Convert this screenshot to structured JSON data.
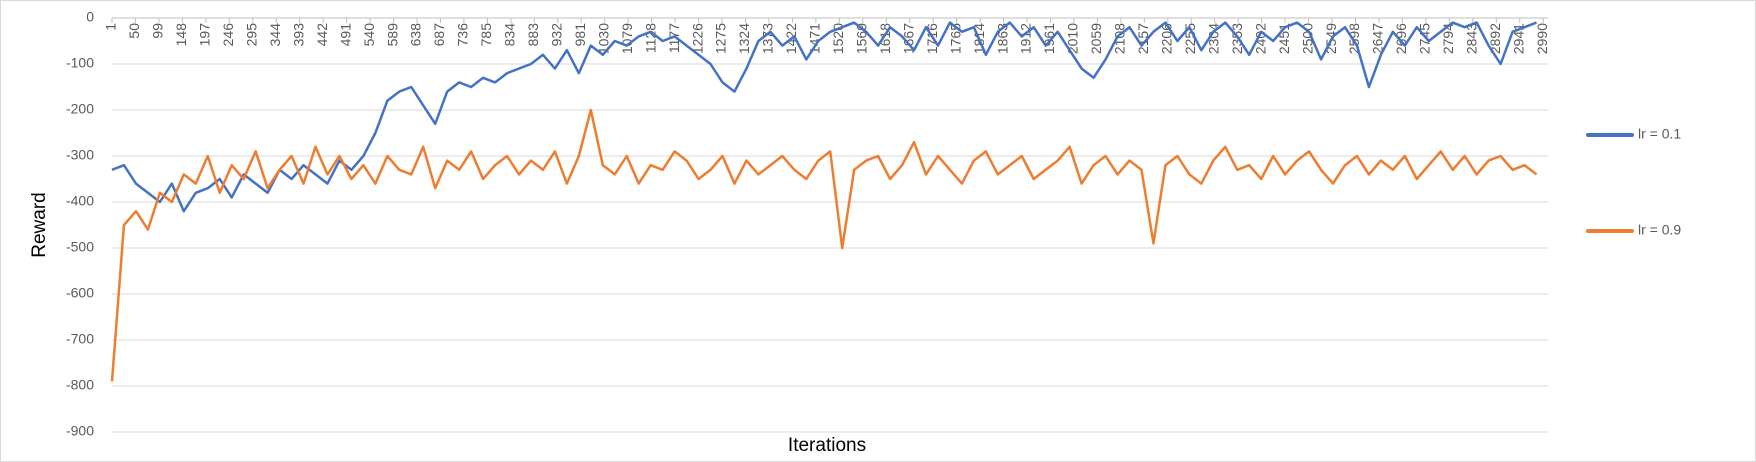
{
  "chart_data": {
    "type": "line",
    "x_label": "Iterations",
    "y_label": "Reward",
    "x": [
      1,
      26,
      51,
      76,
      101,
      126,
      151,
      176,
      201,
      226,
      251,
      276,
      301,
      326,
      351,
      376,
      401,
      426,
      451,
      476,
      501,
      526,
      551,
      576,
      601,
      626,
      651,
      676,
      701,
      726,
      751,
      776,
      801,
      826,
      851,
      876,
      901,
      926,
      951,
      976,
      1001,
      1026,
      1051,
      1076,
      1101,
      1126,
      1151,
      1176,
      1201,
      1226,
      1251,
      1276,
      1301,
      1326,
      1351,
      1376,
      1401,
      1426,
      1451,
      1476,
      1501,
      1526,
      1551,
      1576,
      1601,
      1626,
      1651,
      1676,
      1701,
      1726,
      1751,
      1776,
      1801,
      1826,
      1851,
      1876,
      1901,
      1926,
      1951,
      1976,
      2001,
      2026,
      2051,
      2076,
      2101,
      2126,
      2151,
      2176,
      2201,
      2226,
      2251,
      2276,
      2301,
      2326,
      2351,
      2376,
      2401,
      2426,
      2451,
      2476,
      2501,
      2526,
      2551,
      2576,
      2601,
      2626,
      2651,
      2676,
      2701,
      2726,
      2751,
      2776,
      2801,
      2826,
      2851,
      2876,
      2901,
      2926,
      2951,
      2976
    ],
    "series": [
      {
        "name": "lr = 0.1",
        "color": "#4472c4",
        "values": [
          -330,
          -320,
          -360,
          -380,
          -400,
          -360,
          -420,
          -380,
          -370,
          -350,
          -390,
          -340,
          -360,
          -380,
          -330,
          -350,
          -320,
          -340,
          -360,
          -310,
          -330,
          -300,
          -250,
          -180,
          -160,
          -150,
          -190,
          -230,
          -160,
          -140,
          -150,
          -130,
          -140,
          -120,
          -110,
          -100,
          -80,
          -110,
          -70,
          -120,
          -60,
          -80,
          -50,
          -60,
          -40,
          -30,
          -50,
          -40,
          -60,
          -80,
          -100,
          -140,
          -160,
          -110,
          -50,
          -30,
          -60,
          -40,
          -90,
          -50,
          -30,
          -20,
          -10,
          -30,
          -60,
          -20,
          -40,
          -70,
          -20,
          -60,
          -10,
          -30,
          -20,
          -80,
          -30,
          -10,
          -40,
          -20,
          -60,
          -30,
          -70,
          -110,
          -130,
          -90,
          -40,
          -20,
          -60,
          -30,
          -10,
          -50,
          -20,
          -70,
          -30,
          -10,
          -40,
          -80,
          -30,
          -50,
          -20,
          -10,
          -30,
          -90,
          -40,
          -20,
          -60,
          -150,
          -80,
          -30,
          -60,
          -20,
          -50,
          -30,
          -10,
          -20,
          -10,
          -60,
          -100,
          -30,
          -20,
          -10
        ]
      },
      {
        "name": "lr = 0.9",
        "color": "#ed7d31",
        "values": [
          -790,
          -450,
          -420,
          -460,
          -380,
          -400,
          -340,
          -360,
          -300,
          -380,
          -320,
          -350,
          -290,
          -370,
          -330,
          -300,
          -360,
          -280,
          -340,
          -300,
          -350,
          -320,
          -360,
          -300,
          -330,
          -340,
          -280,
          -370,
          -310,
          -330,
          -290,
          -350,
          -320,
          -300,
          -340,
          -310,
          -330,
          -290,
          -360,
          -300,
          -200,
          -320,
          -340,
          -300,
          -360,
          -320,
          -330,
          -290,
          -310,
          -350,
          -330,
          -300,
          -360,
          -310,
          -340,
          -320,
          -300,
          -330,
          -350,
          -310,
          -290,
          -500,
          -330,
          -310,
          -300,
          -350,
          -320,
          -270,
          -340,
          -300,
          -330,
          -360,
          -310,
          -290,
          -340,
          -320,
          -300,
          -350,
          -330,
          -310,
          -280,
          -360,
          -320,
          -300,
          -340,
          -310,
          -330,
          -490,
          -320,
          -300,
          -340,
          -360,
          -310,
          -280,
          -330,
          -320,
          -350,
          -300,
          -340,
          -310,
          -290,
          -330,
          -360,
          -320,
          -300,
          -340,
          -310,
          -330,
          -300,
          -350,
          -320,
          -290,
          -330,
          -300,
          -340,
          -310,
          -300,
          -330,
          -320,
          -340
        ]
      }
    ],
    "xlim": [
      1,
      3000
    ],
    "xticks": [
      1,
      50,
      99,
      148,
      197,
      246,
      295,
      344,
      393,
      442,
      491,
      540,
      589,
      638,
      687,
      736,
      785,
      834,
      883,
      932,
      981,
      1030,
      1079,
      1128,
      1177,
      1226,
      1275,
      1324,
      1373,
      1422,
      1471,
      1520,
      1569,
      1618,
      1667,
      1716,
      1765,
      1814,
      1863,
      1912,
      1961,
      2010,
      2059,
      2108,
      2157,
      2206,
      2255,
      2304,
      2353,
      2402,
      2451,
      2500,
      2549,
      2598,
      2647,
      2696,
      2745,
      2794,
      2843,
      2892,
      2941,
      2990
    ],
    "ylim": [
      -900,
      0
    ],
    "yticks": [
      0,
      -100,
      -200,
      -300,
      -400,
      -500,
      -600,
      -700,
      -800,
      -900
    ],
    "grid": true,
    "legend": "right"
  }
}
